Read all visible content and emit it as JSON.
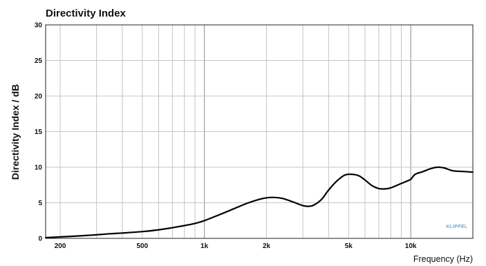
{
  "chart_data": {
    "type": "line",
    "title": "Directivity Index",
    "xlabel": "Frequency (Hz)",
    "ylabel": "Directivity Index / dB",
    "x_scale": "log",
    "xlim": [
      170,
      20000
    ],
    "ylim": [
      0,
      30
    ],
    "grid": true,
    "x_tick_labels": [
      {
        "value": 200,
        "label": "200"
      },
      {
        "value": 500,
        "label": "500"
      },
      {
        "value": 1000,
        "label": "1k"
      },
      {
        "value": 2000,
        "label": "2k"
      },
      {
        "value": 5000,
        "label": "5k"
      },
      {
        "value": 10000,
        "label": "10k"
      }
    ],
    "x_grid": [
      200,
      300,
      400,
      500,
      600,
      700,
      800,
      900,
      1000,
      2000,
      3000,
      4000,
      5000,
      6000,
      7000,
      8000,
      9000,
      10000,
      20000
    ],
    "y_ticks": [
      0,
      5,
      10,
      15,
      20,
      25,
      30
    ],
    "series": [
      {
        "color": "#000000",
        "points": [
          [
            170,
            0.1
          ],
          [
            200,
            0.2
          ],
          [
            250,
            0.35
          ],
          [
            300,
            0.5
          ],
          [
            350,
            0.65
          ],
          [
            400,
            0.75
          ],
          [
            500,
            0.95
          ],
          [
            600,
            1.2
          ],
          [
            700,
            1.5
          ],
          [
            800,
            1.8
          ],
          [
            900,
            2.1
          ],
          [
            1000,
            2.5
          ],
          [
            1200,
            3.4
          ],
          [
            1400,
            4.2
          ],
          [
            1600,
            4.9
          ],
          [
            1800,
            5.4
          ],
          [
            2000,
            5.7
          ],
          [
            2200,
            5.75
          ],
          [
            2400,
            5.6
          ],
          [
            2700,
            5.1
          ],
          [
            3000,
            4.6
          ],
          [
            3200,
            4.5
          ],
          [
            3400,
            4.7
          ],
          [
            3700,
            5.5
          ],
          [
            4000,
            6.8
          ],
          [
            4400,
            8.1
          ],
          [
            4800,
            8.9
          ],
          [
            5200,
            9.0
          ],
          [
            5600,
            8.8
          ],
          [
            6000,
            8.2
          ],
          [
            6500,
            7.4
          ],
          [
            7000,
            7.0
          ],
          [
            7500,
            6.95
          ],
          [
            8000,
            7.1
          ],
          [
            8800,
            7.6
          ],
          [
            9500,
            8.0
          ],
          [
            10000,
            8.3
          ],
          [
            10500,
            9.0
          ],
          [
            11500,
            9.4
          ],
          [
            12500,
            9.8
          ],
          [
            13500,
            10.0
          ],
          [
            14500,
            9.9
          ],
          [
            16000,
            9.5
          ],
          [
            18000,
            9.4
          ],
          [
            20000,
            9.3
          ]
        ]
      }
    ],
    "watermark": "KLIPPEL"
  }
}
